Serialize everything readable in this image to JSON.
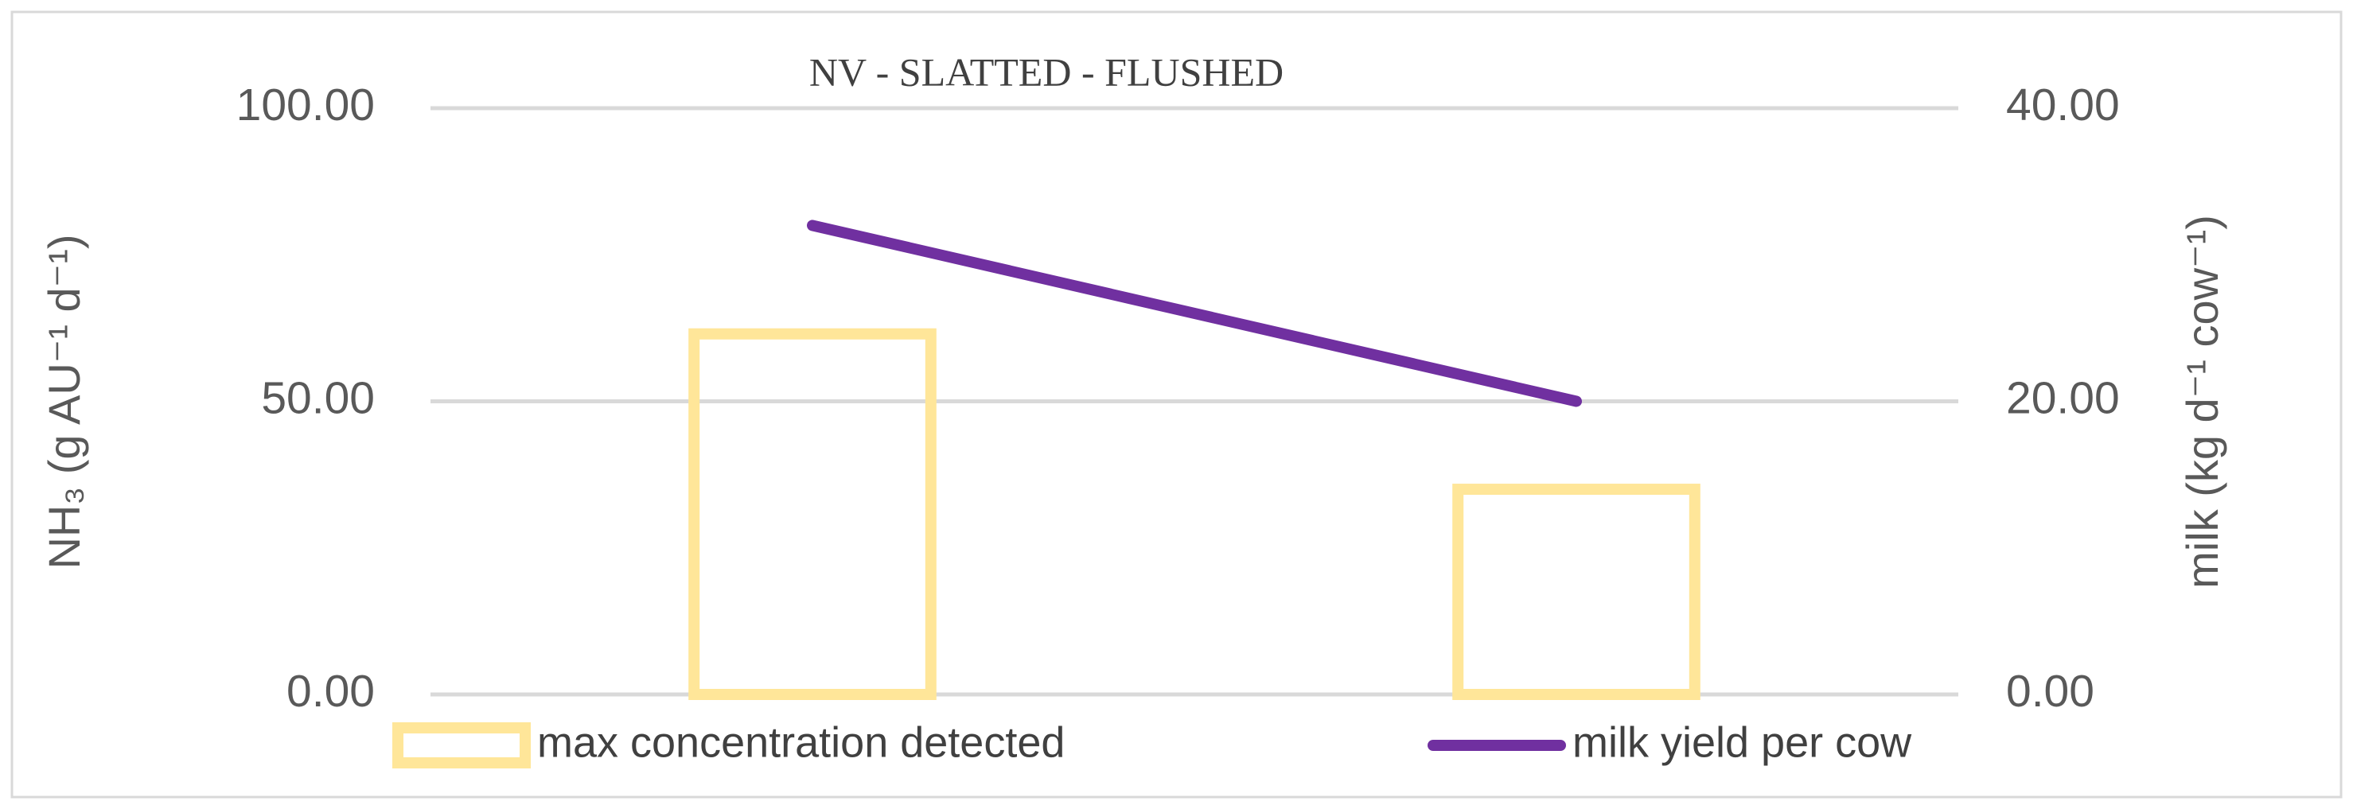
{
  "chart_data": {
    "type": "combo",
    "title": "NV -  SLATTED - FLUSHED",
    "y_label": "NH₃ (g AU⁻¹ d⁻¹)",
    "y2_label": "milk (kg d⁻¹ cow⁻¹)",
    "categories": [
      null,
      null
    ],
    "series": [
      {
        "name": "max concentration detected",
        "type": "bar",
        "color": "#FFE699",
        "values": [
          61.5,
          35
        ]
      },
      {
        "name": "milk yield per cow",
        "type": "line",
        "color": "#7030A0",
        "axis": "y2",
        "values": [
          32,
          20
        ]
      }
    ],
    "ylim": [
      0,
      100
    ],
    "yticks": [
      {
        "value": 0,
        "label": "0.00"
      },
      {
        "value": 50,
        "label": "50.00"
      },
      {
        "value": 100,
        "label": "100.00"
      }
    ],
    "y2lim": [
      0,
      40
    ],
    "y2ticks": [
      {
        "value": 0,
        "label": "0.00"
      },
      {
        "value": 20,
        "label": "20.00"
      },
      {
        "value": 40,
        "label": "40.00"
      }
    ],
    "grid": true,
    "legend": "bottom"
  }
}
